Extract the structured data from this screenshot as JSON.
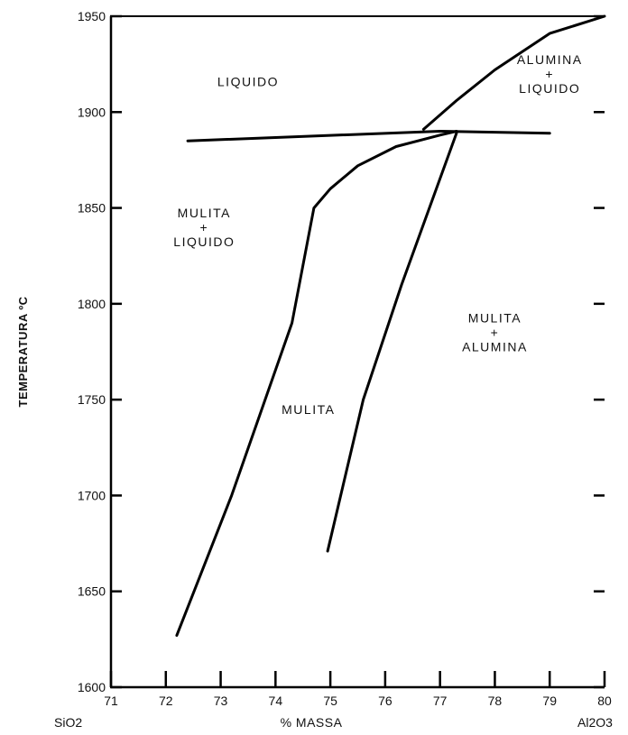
{
  "chart_data": {
    "type": "line",
    "title": "",
    "xlabel": "% MASSA",
    "ylabel": "TEMPERATURA ºC",
    "xlim": [
      71,
      80
    ],
    "ylim": [
      1600,
      1950
    ],
    "x_ticks": [
      71,
      72,
      73,
      74,
      75,
      76,
      77,
      78,
      79,
      80
    ],
    "y_ticks": [
      1600,
      1650,
      1700,
      1750,
      1800,
      1850,
      1900,
      1950
    ],
    "x_end_labels": {
      "left": "SiO2",
      "right": "Al2O3"
    },
    "grid": false,
    "series": [
      {
        "values": [
          [
            72.2,
            1627
          ],
          [
            73.2,
            1700
          ],
          [
            74.3,
            1790
          ],
          [
            74.7,
            1850
          ],
          [
            75.0,
            1860
          ],
          [
            75.5,
            1872
          ],
          [
            76.2,
            1882
          ],
          [
            77.0,
            1888
          ],
          [
            77.3,
            1890
          ]
        ]
      },
      {
        "values": [
          [
            74.95,
            1671
          ],
          [
            75.6,
            1750
          ],
          [
            76.3,
            1810
          ],
          [
            77.3,
            1889
          ]
        ]
      },
      {
        "values": [
          [
            72.4,
            1885
          ],
          [
            77.0,
            1890
          ],
          [
            79.0,
            1889
          ]
        ]
      },
      {
        "values": [
          [
            76.7,
            1891
          ],
          [
            77.3,
            1906
          ],
          [
            78.0,
            1922
          ],
          [
            79.0,
            1941
          ],
          [
            80.0,
            1950
          ]
        ]
      }
    ],
    "annotations": [
      {
        "lines": [
          "LIQUIDO"
        ],
        "x": 73.5,
        "y": 1916
      },
      {
        "lines": [
          "ALUMINA",
          "+",
          "LIQUIDO"
        ],
        "x": 79.0,
        "y": 1920
      },
      {
        "lines": [
          "MULITA",
          "+",
          "LIQUIDO"
        ],
        "x": 72.7,
        "y": 1840
      },
      {
        "lines": [
          "MULITA"
        ],
        "x": 74.6,
        "y": 1745
      },
      {
        "lines": [
          "MULITA",
          "+",
          "ALUMINA"
        ],
        "x": 78.0,
        "y": 1785
      }
    ]
  }
}
